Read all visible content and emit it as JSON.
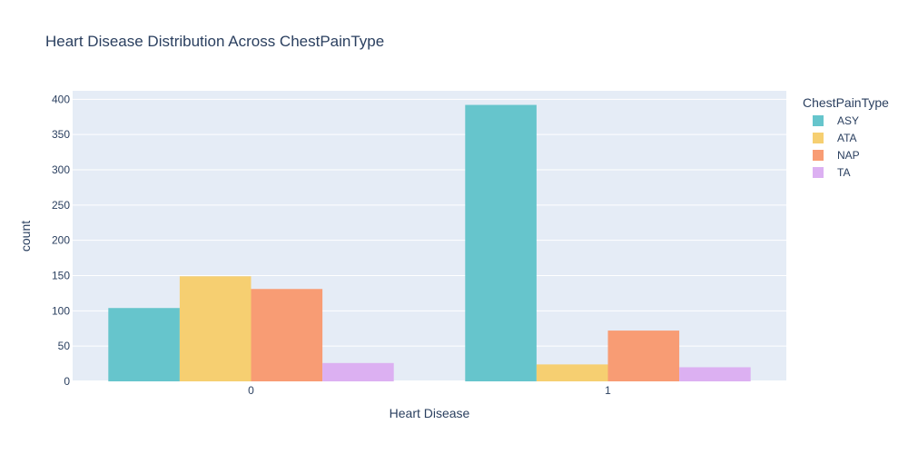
{
  "chart_data": {
    "type": "bar",
    "title": "Heart Disease Distribution Across ChestPainType",
    "xlabel": "Heart Disease",
    "ylabel": "count",
    "categories": [
      "0",
      "1"
    ],
    "series": [
      {
        "name": "ASY",
        "values": [
          104,
          392
        ],
        "color": "#66c5cc"
      },
      {
        "name": "ATA",
        "values": [
          149,
          24
        ],
        "color": "#f6cf71"
      },
      {
        "name": "NAP",
        "values": [
          131,
          72
        ],
        "color": "#f89c74"
      },
      {
        "name": "TA",
        "values": [
          26,
          20
        ],
        "color": "#dcb0f2"
      }
    ],
    "ylim": [
      0,
      412
    ],
    "yticks": [
      0,
      50,
      100,
      150,
      200,
      250,
      300,
      350,
      400
    ],
    "grid": true,
    "legend_title": "ChestPainType",
    "legend_position": "top-right",
    "plot_bgcolor": "#e5ecf6"
  }
}
